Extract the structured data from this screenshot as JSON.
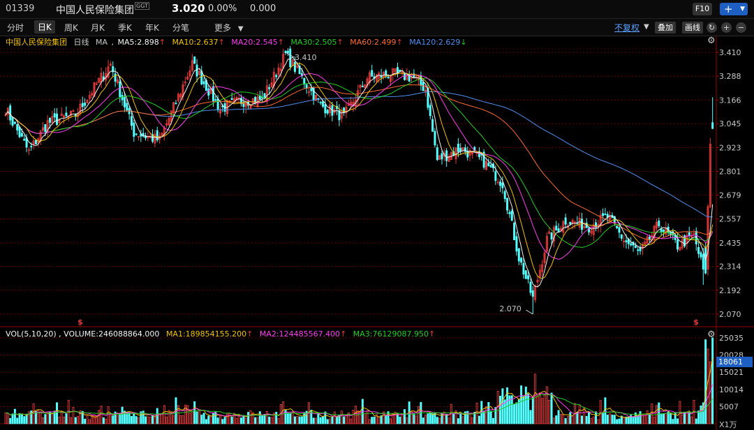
{
  "header": {
    "code": "01339",
    "name": "中国人民保险集团",
    "badge": "GGT",
    "price": "3.020",
    "change_pct": "0.00%",
    "change": "0.000",
    "f10_label": "F10",
    "plus_label": "+"
  },
  "tabs": [
    "分时",
    "日K",
    "周K",
    "月K",
    "季K",
    "年K",
    "分笔",
    "更多"
  ],
  "active_tab": "日K",
  "toolbar": {
    "adjust_label": "不复权",
    "overlay_label": "叠加",
    "draw_label": "画线"
  },
  "ma_legend": {
    "name": "中国人民保险集团",
    "period": "日线",
    "ma_label": "MA",
    "ma5": "MA5:2.898",
    "ma10": "MA10:2.637",
    "ma20": "MA20:2.545",
    "ma30": "MA30:2.505",
    "ma60": "MA60:2.499",
    "ma120": "MA120:2.629",
    "up_arrow": "↑",
    "down_arrow": "↓"
  },
  "vol_legend": {
    "vol": "VOL(5,10,20) , VOLUME:246088864.000",
    "ma1": "MA1:189854155.200",
    "ma2": "MA2:124485567.400",
    "ma3": "MA3:76129087.950",
    "up_arrow": "↑"
  },
  "colors": {
    "up": "#e83b3b",
    "down": "#54ffff",
    "ma5": "#f4f4f4",
    "ma10": "#f4c400",
    "ma20": "#ff3bf0",
    "ma30": "#20d020",
    "ma60": "#ff6a30",
    "ma120": "#4f8ff2",
    "grid": "#9b0000"
  },
  "chart_data": [
    {
      "type": "candlestick",
      "title": "中国人民保险集团 日线",
      "ylim": [
        2.07,
        3.41
      ],
      "y_ticks": [
        "3.410",
        "3.288",
        "3.166",
        "3.045",
        "2.923",
        "2.801",
        "2.679",
        "2.557",
        "2.435",
        "2.314",
        "2.192",
        "2.070"
      ],
      "annotations": [
        {
          "label": "3.410"
        },
        {
          "label": "2.070"
        }
      ],
      "dividend_markers": [
        "$",
        "$"
      ],
      "anchors_close": [
        [
          0,
          3.12
        ],
        [
          10,
          2.9
        ],
        [
          18,
          3.05
        ],
        [
          30,
          3.09
        ],
        [
          45,
          3.35
        ],
        [
          55,
          3.0
        ],
        [
          66,
          2.96
        ],
        [
          80,
          3.35
        ],
        [
          92,
          3.12
        ],
        [
          100,
          3.16
        ],
        [
          110,
          3.17
        ],
        [
          120,
          3.4
        ],
        [
          135,
          3.14
        ],
        [
          145,
          3.08
        ],
        [
          155,
          3.28
        ],
        [
          165,
          3.3
        ],
        [
          175,
          3.28
        ],
        [
          180,
          3.22
        ],
        [
          185,
          2.86
        ],
        [
          195,
          2.92
        ],
        [
          205,
          2.85
        ],
        [
          213,
          2.74
        ],
        [
          220,
          2.36
        ],
        [
          226,
          2.15
        ],
        [
          232,
          2.45
        ],
        [
          240,
          2.55
        ],
        [
          250,
          2.52
        ],
        [
          258,
          2.57
        ],
        [
          265,
          2.45
        ],
        [
          272,
          2.38
        ],
        [
          280,
          2.53
        ],
        [
          288,
          2.42
        ],
        [
          295,
          2.47
        ],
        [
          298,
          2.34
        ],
        [
          301,
          2.67
        ],
        [
          303,
          3.02
        ]
      ],
      "last_close": 3.02
    },
    {
      "type": "bar",
      "title": "VOL(5,10,20)",
      "ylim": [
        0,
        25035
      ],
      "y_ticks": [
        "25035",
        "20028",
        "15021",
        "10014",
        "5007"
      ],
      "highlight_value": "18061",
      "unit": "X1万"
    }
  ]
}
